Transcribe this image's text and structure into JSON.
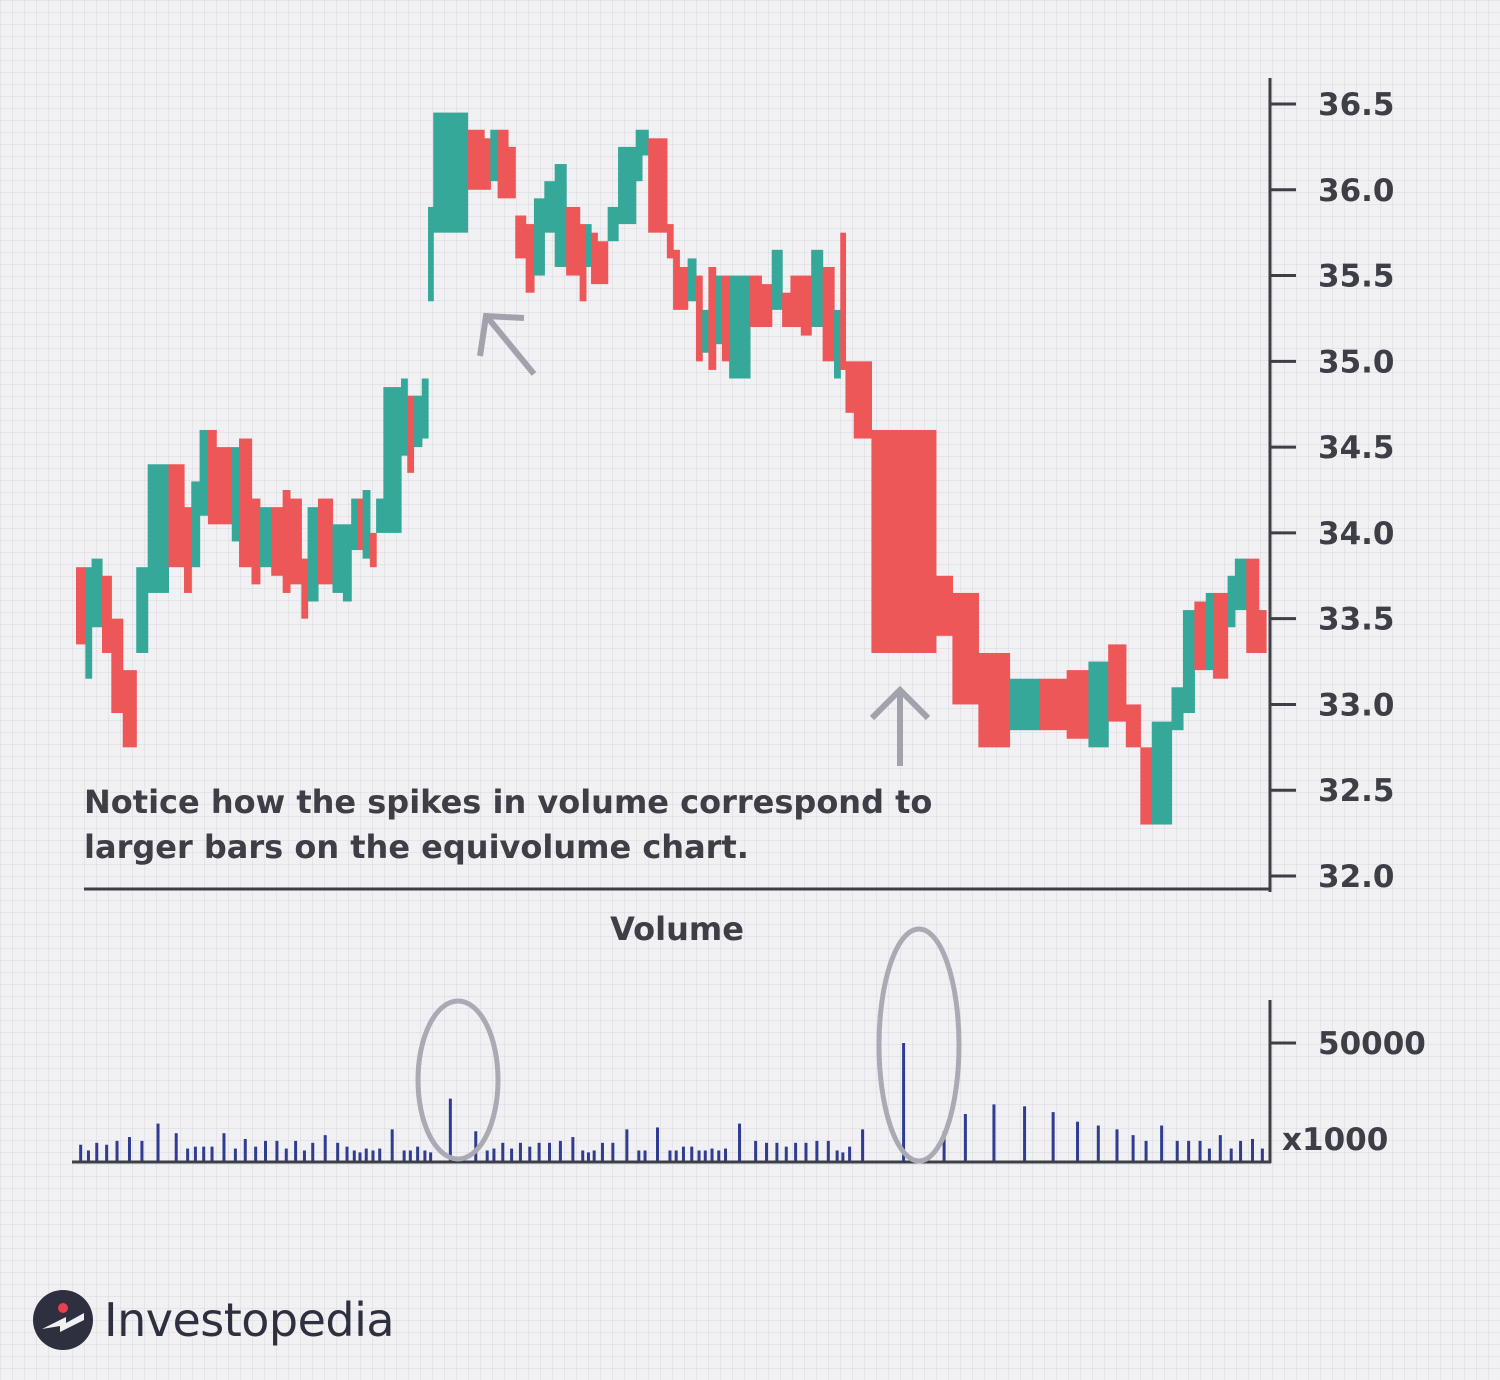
{
  "chart_data": [
    {
      "type": "equivolume",
      "title": "",
      "ylim": [
        32.0,
        36.5
      ],
      "y_ticks": [
        "36.5",
        "36.0",
        "35.5",
        "35.0",
        "34.5",
        "34.0",
        "33.5",
        "33.0",
        "32.5",
        "32.0"
      ],
      "y_axis_side": "right",
      "grid": true,
      "colors": {
        "up": "#35a89a",
        "down": "#ed5758"
      },
      "bars": [
        {
          "high": 33.8,
          "low": 33.35,
          "dir": "down",
          "volume": 18
        },
        {
          "high": 33.8,
          "low": 33.15,
          "dir": "up",
          "volume": 12
        },
        {
          "high": 33.85,
          "low": 33.45,
          "dir": "up",
          "volume": 20
        },
        {
          "high": 33.75,
          "low": 33.3,
          "dir": "down",
          "volume": 18
        },
        {
          "high": 33.5,
          "low": 32.95,
          "dir": "down",
          "volume": 22
        },
        {
          "high": 33.2,
          "low": 32.75,
          "dir": "down",
          "volume": 26
        },
        {
          "high": 33.8,
          "low": 33.3,
          "dir": "up",
          "volume": 22
        },
        {
          "high": 34.4,
          "low": 33.65,
          "dir": "up",
          "volume": 40
        },
        {
          "high": 34.4,
          "low": 33.8,
          "dir": "down",
          "volume": 30
        },
        {
          "high": 34.15,
          "low": 33.65,
          "dir": "down",
          "volume": 14
        },
        {
          "high": 34.3,
          "low": 33.8,
          "dir": "up",
          "volume": 16
        },
        {
          "high": 34.6,
          "low": 34.1,
          "dir": "up",
          "volume": 16
        },
        {
          "high": 34.6,
          "low": 34.05,
          "dir": "down",
          "volume": 16
        },
        {
          "high": 34.5,
          "low": 34.05,
          "dir": "down",
          "volume": 30
        },
        {
          "high": 34.5,
          "low": 33.95,
          "dir": "up",
          "volume": 14
        },
        {
          "high": 34.55,
          "low": 33.8,
          "dir": "down",
          "volume": 24
        },
        {
          "high": 34.2,
          "low": 33.7,
          "dir": "down",
          "volume": 16
        },
        {
          "high": 34.15,
          "low": 33.8,
          "dir": "up",
          "volume": 22
        },
        {
          "high": 34.15,
          "low": 33.75,
          "dir": "down",
          "volume": 22
        },
        {
          "high": 34.25,
          "low": 33.65,
          "dir": "down",
          "volume": 14
        },
        {
          "high": 34.2,
          "low": 33.7,
          "dir": "down",
          "volume": 22
        },
        {
          "high": 33.85,
          "low": 33.5,
          "dir": "down",
          "volume": 12
        },
        {
          "high": 34.15,
          "low": 33.6,
          "dir": "up",
          "volume": 20
        },
        {
          "high": 34.2,
          "low": 33.7,
          "dir": "down",
          "volume": 28
        },
        {
          "high": 34.05,
          "low": 33.65,
          "dir": "up",
          "volume": 20
        },
        {
          "high": 34.05,
          "low": 33.6,
          "dir": "up",
          "volume": 16
        },
        {
          "high": 34.2,
          "low": 33.9,
          "dir": "up",
          "volume": 12
        },
        {
          "high": 34.2,
          "low": 33.9,
          "dir": "down",
          "volume": 10
        },
        {
          "high": 34.25,
          "low": 33.85,
          "dir": "up",
          "volume": 14
        },
        {
          "high": 34.0,
          "low": 33.8,
          "dir": "down",
          "volume": 12
        },
        {
          "high": 34.2,
          "low": 34.0,
          "dir": "up",
          "volume": 14
        },
        {
          "high": 34.85,
          "low": 34.0,
          "dir": "up",
          "volume": 34
        },
        {
          "high": 34.9,
          "low": 34.45,
          "dir": "up",
          "volume": 12
        },
        {
          "high": 34.8,
          "low": 34.35,
          "dir": "down",
          "volume": 12
        },
        {
          "high": 34.8,
          "low": 34.5,
          "dir": "up",
          "volume": 16
        },
        {
          "high": 34.9,
          "low": 34.55,
          "dir": "up",
          "volume": 12
        },
        {
          "high": 35.9,
          "low": 35.35,
          "dir": "up",
          "volume": 10
        },
        {
          "high": 36.45,
          "low": 35.75,
          "dir": "up",
          "volume": 66
        },
        {
          "high": 36.35,
          "low": 36.0,
          "dir": "down",
          "volume": 32
        },
        {
          "high": 36.3,
          "low": 36.0,
          "dir": "down",
          "volume": 12
        },
        {
          "high": 36.35,
          "low": 36.05,
          "dir": "up",
          "volume": 14
        },
        {
          "high": 36.35,
          "low": 35.95,
          "dir": "down",
          "volume": 20
        },
        {
          "high": 36.25,
          "low": 35.95,
          "dir": "down",
          "volume": 14
        },
        {
          "high": 35.85,
          "low": 35.6,
          "dir": "down",
          "volume": 20
        },
        {
          "high": 35.8,
          "low": 35.4,
          "dir": "down",
          "volume": 16
        },
        {
          "high": 35.95,
          "low": 35.5,
          "dir": "up",
          "volume": 20
        },
        {
          "high": 36.05,
          "low": 35.75,
          "dir": "up",
          "volume": 20
        },
        {
          "high": 36.15,
          "low": 35.55,
          "dir": "up",
          "volume": 22
        },
        {
          "high": 35.9,
          "low": 35.5,
          "dir": "down",
          "volume": 26
        },
        {
          "high": 35.8,
          "low": 35.35,
          "dir": "down",
          "volume": 12
        },
        {
          "high": 35.8,
          "low": 35.55,
          "dir": "up",
          "volume": 10
        },
        {
          "high": 35.75,
          "low": 35.45,
          "dir": "down",
          "volume": 12
        },
        {
          "high": 35.7,
          "low": 35.45,
          "dir": "down",
          "volume": 20
        },
        {
          "high": 35.9,
          "low": 35.7,
          "dir": "up",
          "volume": 20
        },
        {
          "high": 36.25,
          "low": 35.8,
          "dir": "up",
          "volume": 34
        },
        {
          "high": 36.35,
          "low": 36.05,
          "dir": "up",
          "volume": 12
        },
        {
          "high": 36.35,
          "low": 36.2,
          "dir": "up",
          "volume": 12
        },
        {
          "high": 36.3,
          "low": 35.75,
          "dir": "down",
          "volume": 36
        },
        {
          "high": 35.8,
          "low": 35.6,
          "dir": "down",
          "volume": 12
        },
        {
          "high": 35.65,
          "low": 35.3,
          "dir": "down",
          "volume": 12
        },
        {
          "high": 35.55,
          "low": 35.3,
          "dir": "down",
          "volume": 16
        },
        {
          "high": 35.6,
          "low": 35.35,
          "dir": "up",
          "volume": 16
        },
        {
          "high": 35.5,
          "low": 35.0,
          "dir": "down",
          "volume": 12
        },
        {
          "high": 35.3,
          "low": 35.05,
          "dir": "up",
          "volume": 12
        },
        {
          "high": 35.55,
          "low": 34.95,
          "dir": "down",
          "volume": 14
        },
        {
          "high": 35.5,
          "low": 35.1,
          "dir": "up",
          "volume": 12
        },
        {
          "high": 35.5,
          "low": 35.0,
          "dir": "down",
          "volume": 14
        },
        {
          "high": 35.5,
          "low": 34.9,
          "dir": "up",
          "volume": 40
        },
        {
          "high": 35.5,
          "low": 35.2,
          "dir": "down",
          "volume": 22
        },
        {
          "high": 35.45,
          "low": 35.2,
          "dir": "down",
          "volume": 20
        },
        {
          "high": 35.65,
          "low": 35.3,
          "dir": "up",
          "volume": 20
        },
        {
          "high": 35.4,
          "low": 35.2,
          "dir": "down",
          "volume": 16
        },
        {
          "high": 35.5,
          "low": 35.2,
          "dir": "down",
          "volume": 20
        },
        {
          "high": 35.5,
          "low": 35.15,
          "dir": "down",
          "volume": 20
        },
        {
          "high": 35.65,
          "low": 35.2,
          "dir": "up",
          "volume": 22
        },
        {
          "high": 35.55,
          "low": 35.0,
          "dir": "down",
          "volume": 22
        },
        {
          "high": 35.3,
          "low": 34.9,
          "dir": "up",
          "volume": 12
        },
        {
          "high": 35.75,
          "low": 34.95,
          "dir": "down",
          "volume": 10
        },
        {
          "high": 35.0,
          "low": 34.7,
          "dir": "down",
          "volume": 16
        },
        {
          "high": 35.0,
          "low": 34.55,
          "dir": "down",
          "volume": 34
        },
        {
          "high": 34.6,
          "low": 33.3,
          "dir": "down",
          "volume": 124
        },
        {
          "high": 33.75,
          "low": 33.4,
          "dir": "down",
          "volume": 32
        },
        {
          "high": 33.65,
          "low": 33.0,
          "dir": "down",
          "volume": 50
        },
        {
          "high": 33.3,
          "low": 32.75,
          "dir": "down",
          "volume": 60
        },
        {
          "high": 33.15,
          "low": 32.85,
          "dir": "up",
          "volume": 58
        },
        {
          "high": 33.15,
          "low": 32.85,
          "dir": "down",
          "volume": 52
        },
        {
          "high": 33.2,
          "low": 32.8,
          "dir": "down",
          "volume": 42
        },
        {
          "high": 33.25,
          "low": 32.75,
          "dir": "up",
          "volume": 38
        },
        {
          "high": 33.35,
          "low": 32.9,
          "dir": "down",
          "volume": 34
        },
        {
          "high": 33.0,
          "low": 32.75,
          "dir": "down",
          "volume": 28
        },
        {
          "high": 32.75,
          "low": 32.3,
          "dir": "down",
          "volume": 22
        },
        {
          "high": 32.9,
          "low": 32.3,
          "dir": "up",
          "volume": 38
        },
        {
          "high": 33.1,
          "low": 32.85,
          "dir": "up",
          "volume": 22
        },
        {
          "high": 33.55,
          "low": 32.95,
          "dir": "up",
          "volume": 22
        },
        {
          "high": 33.6,
          "low": 33.2,
          "dir": "down",
          "volume": 22
        },
        {
          "high": 33.65,
          "low": 33.2,
          "dir": "up",
          "volume": 14
        },
        {
          "high": 33.65,
          "low": 33.15,
          "dir": "down",
          "volume": 28
        },
        {
          "high": 33.75,
          "low": 33.45,
          "dir": "up",
          "volume": 14
        },
        {
          "high": 33.85,
          "low": 33.55,
          "dir": "up",
          "volume": 22
        },
        {
          "high": 33.85,
          "low": 33.3,
          "dir": "down",
          "volume": 24
        },
        {
          "high": 33.55,
          "low": 33.3,
          "dir": "down",
          "volume": 14
        }
      ],
      "annotations": {
        "note_line1": "Notice how the spikes in volume correspond to",
        "note_line2": "larger bars on the equivolume chart."
      }
    },
    {
      "type": "bar",
      "title": "Volume",
      "ylim": [
        0,
        70000
      ],
      "y_ticks": [
        "50000"
      ],
      "unit_label": "x1000",
      "y_axis_side": "right",
      "bar_color": "#2f3c8f",
      "highlighted_spikes": [
        37,
        80
      ]
    }
  ],
  "brand": {
    "name": "Investopedia",
    "mark_color": "#2e3040",
    "accent": "#e8414b"
  },
  "arrows": [
    "up-left-arrow",
    "up-arrow"
  ]
}
